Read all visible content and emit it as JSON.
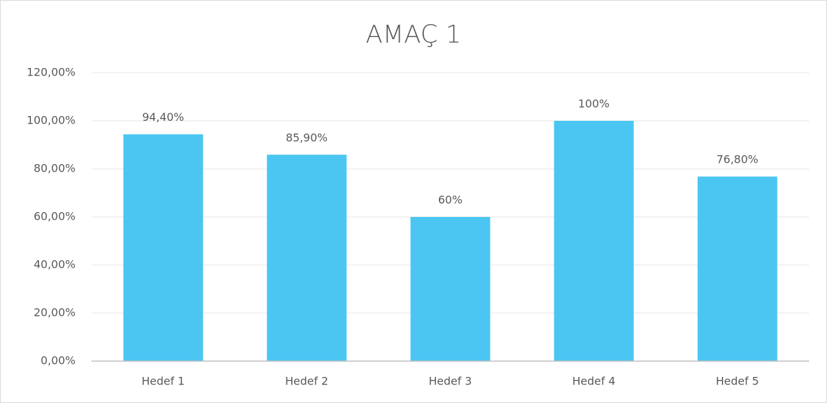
{
  "chart_data": {
    "type": "bar",
    "title": "AMAÇ 1",
    "categories": [
      "Hedef 1",
      "Hedef 2",
      "Hedef 3",
      "Hedef 4",
      "Hedef 5"
    ],
    "values": [
      94.4,
      85.9,
      60,
      100,
      76.8
    ],
    "value_labels": [
      "94,40%",
      "85,90%",
      "60%",
      "100%",
      "76,80%"
    ],
    "color": "#4bc6f2",
    "ylim": [
      0,
      120
    ],
    "yticks": [
      {
        "value": 0,
        "label": "0,00%"
      },
      {
        "value": 20,
        "label": "20,00%"
      },
      {
        "value": 40,
        "label": "40,00%"
      },
      {
        "value": 60,
        "label": "60,00%"
      },
      {
        "value": 80,
        "label": "80,00%"
      },
      {
        "value": 100,
        "label": "100,00%"
      },
      {
        "value": 120,
        "label": "120,00%"
      }
    ],
    "grid": true
  }
}
